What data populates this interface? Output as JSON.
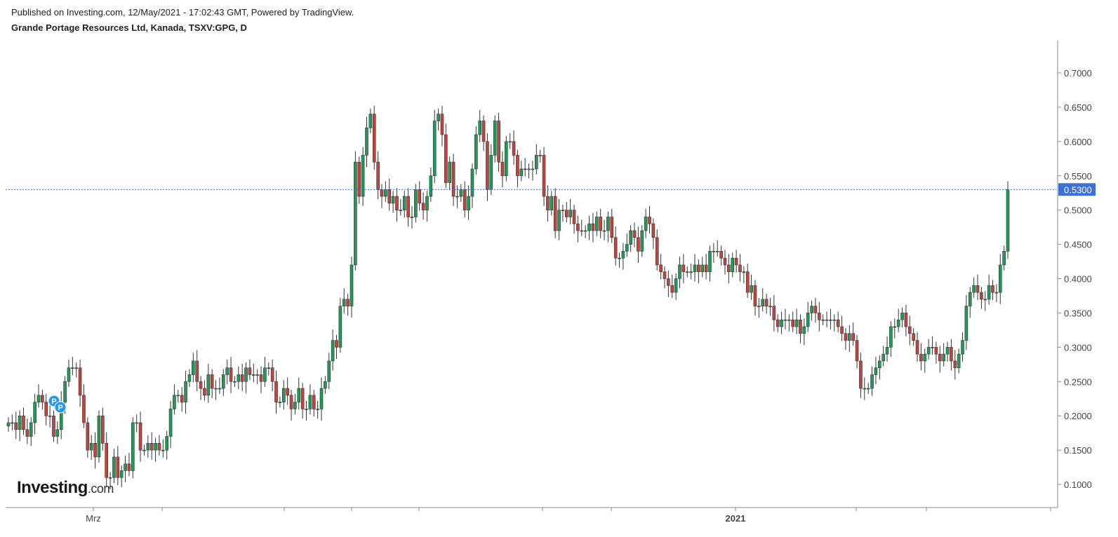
{
  "header": {
    "published": "Published on Investing.com, 12/May/2021 - 17:02:43 GMT, Powered by TradingView.",
    "instrument": "Grande Portage Resources Ltd, Kanada, TSXV:GPG, D"
  },
  "logo": {
    "brand": "Investing",
    "suffix": ".com"
  },
  "colors": {
    "up": "#1f9a57",
    "down": "#c0443e",
    "wick": "#333333",
    "price_line": "#3d6fd6",
    "price_label_bg": "#3d6fd6",
    "axis": "#888888",
    "marker": "#2196f3"
  },
  "markers": [
    "P",
    "P"
  ],
  "chart_data": {
    "type": "candlestick",
    "title": "Grande Portage Resources Ltd, Kanada, TSXV:GPG, D",
    "ylim": [
      0.08,
      0.74
    ],
    "ytick_labels": [
      "0.1000",
      "0.1500",
      "0.2000",
      "0.2500",
      "0.3000",
      "0.3500",
      "0.4000",
      "0.4500",
      "0.5000",
      "0.5500",
      "0.6000",
      "0.6500",
      "0.7000"
    ],
    "yticks": [
      0.1,
      0.15,
      0.2,
      0.25,
      0.3,
      0.35,
      0.4,
      0.45,
      0.5,
      0.55,
      0.6,
      0.65,
      0.7
    ],
    "xtick_labels": [
      "Mrz",
      "",
      "",
      "",
      "",
      "",
      "",
      "2021",
      "",
      "",
      ""
    ],
    "current_price": 0.53,
    "current_price_label": "0.5300",
    "grid": false,
    "series": [
      {
        "name": "",
        "close": [
          0.19,
          0.19,
          0.18,
          0.2,
          0.18,
          0.17,
          0.19,
          0.22,
          0.23,
          0.22,
          0.2,
          0.2,
          0.17,
          0.18,
          0.22,
          0.25,
          0.27,
          0.27,
          0.27,
          0.23,
          0.19,
          0.15,
          0.16,
          0.14,
          0.2,
          0.16,
          0.11,
          0.11,
          0.14,
          0.11,
          0.12,
          0.13,
          0.12,
          0.19,
          0.19,
          0.15,
          0.15,
          0.16,
          0.15,
          0.16,
          0.15,
          0.15,
          0.17,
          0.21,
          0.23,
          0.23,
          0.22,
          0.25,
          0.26,
          0.28,
          0.25,
          0.24,
          0.23,
          0.26,
          0.24,
          0.24,
          0.24,
          0.26,
          0.27,
          0.25,
          0.25,
          0.26,
          0.25,
          0.27,
          0.26,
          0.26,
          0.26,
          0.25,
          0.27,
          0.27,
          0.25,
          0.22,
          0.22,
          0.24,
          0.23,
          0.21,
          0.22,
          0.24,
          0.21,
          0.21,
          0.23,
          0.21,
          0.21,
          0.24,
          0.25,
          0.28,
          0.31,
          0.3,
          0.36,
          0.37,
          0.36,
          0.42,
          0.57,
          0.52,
          0.58,
          0.62,
          0.64,
          0.57,
          0.53,
          0.52,
          0.53,
          0.51,
          0.52,
          0.5,
          0.5,
          0.52,
          0.49,
          0.49,
          0.53,
          0.51,
          0.5,
          0.52,
          0.55,
          0.63,
          0.64,
          0.61,
          0.54,
          0.57,
          0.52,
          0.52,
          0.53,
          0.5,
          0.52,
          0.56,
          0.61,
          0.63,
          0.6,
          0.53,
          0.58,
          0.63,
          0.57,
          0.55,
          0.6,
          0.6,
          0.58,
          0.55,
          0.56,
          0.56,
          0.56,
          0.56,
          0.58,
          0.58,
          0.52,
          0.5,
          0.52,
          0.47,
          0.5,
          0.5,
          0.49,
          0.5,
          0.48,
          0.47,
          0.47,
          0.47,
          0.48,
          0.47,
          0.49,
          0.47,
          0.47,
          0.49,
          0.46,
          0.43,
          0.43,
          0.44,
          0.45,
          0.47,
          0.46,
          0.44,
          0.47,
          0.49,
          0.48,
          0.46,
          0.42,
          0.41,
          0.4,
          0.39,
          0.38,
          0.4,
          0.42,
          0.41,
          0.41,
          0.41,
          0.42,
          0.41,
          0.42,
          0.41,
          0.44,
          0.44,
          0.44,
          0.43,
          0.42,
          0.41,
          0.43,
          0.42,
          0.41,
          0.41,
          0.38,
          0.39,
          0.36,
          0.36,
          0.37,
          0.36,
          0.36,
          0.34,
          0.33,
          0.34,
          0.34,
          0.34,
          0.33,
          0.34,
          0.32,
          0.33,
          0.35,
          0.36,
          0.35,
          0.34,
          0.34,
          0.34,
          0.34,
          0.34,
          0.33,
          0.32,
          0.31,
          0.32,
          0.31,
          0.28,
          0.24,
          0.24,
          0.24,
          0.26,
          0.27,
          0.28,
          0.29,
          0.3,
          0.33,
          0.33,
          0.34,
          0.35,
          0.33,
          0.32,
          0.31,
          0.29,
          0.28,
          0.29,
          0.3,
          0.3,
          0.29,
          0.28,
          0.29,
          0.3,
          0.28,
          0.27,
          0.29,
          0.31,
          0.36,
          0.38,
          0.39,
          0.38,
          0.37,
          0.37,
          0.39,
          0.38,
          0.38,
          0.42,
          0.44,
          0.53
        ]
      }
    ]
  }
}
